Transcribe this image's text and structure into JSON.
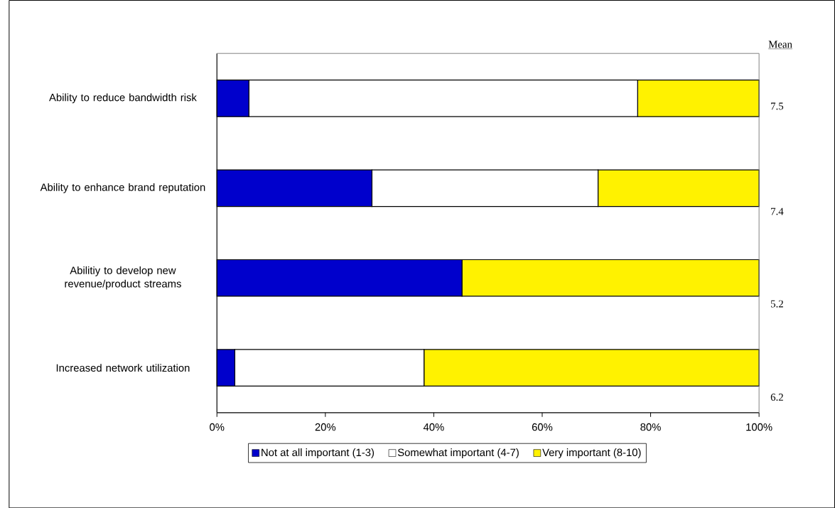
{
  "chart_data": {
    "type": "bar",
    "orientation": "horizontal",
    "stacked": true,
    "categories": [
      "Ability to reduce bandwidth risk",
      "Ability to enhance brand reputation",
      "Abilitiy to develop new revenue/product streams",
      "Increased network utilization"
    ],
    "series": [
      {
        "name": "Not at all important (1-3)",
        "color": "#0000cc",
        "values": [
          5.9,
          28.6,
          45.2,
          3.3
        ]
      },
      {
        "name": "Somewhat important (4-7)",
        "color": "#ffffff",
        "values": [
          71.7,
          41.7,
          0,
          34.9
        ]
      },
      {
        "name": "Very important (8-10)",
        "color": "#fff200",
        "values": [
          22.4,
          29.7,
          54.8,
          61.8
        ]
      }
    ],
    "xlim": [
      0,
      100
    ],
    "xticks": [
      {
        "value": 0,
        "label": "0%"
      },
      {
        "value": 20,
        "label": "20%"
      },
      {
        "value": 40,
        "label": "40%"
      },
      {
        "value": 60,
        "label": "60%"
      },
      {
        "value": 80,
        "label": "80%"
      },
      {
        "value": 100,
        "label": "100%"
      }
    ],
    "legend": "bottom",
    "annotations": [
      "Mean",
      "7.5",
      "7.4",
      "5.2",
      "6.2"
    ]
  }
}
